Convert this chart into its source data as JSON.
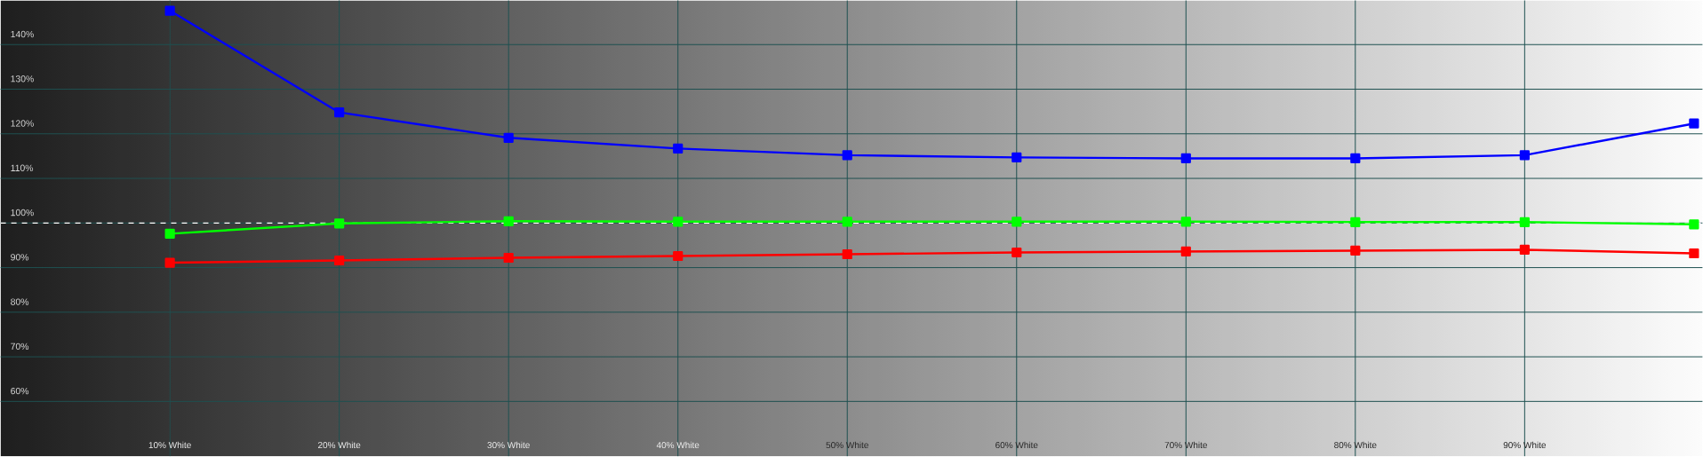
{
  "chart_data": {
    "type": "line",
    "x": [
      10,
      20,
      30,
      40,
      50,
      60,
      70,
      80,
      90,
      100
    ],
    "series": [
      {
        "color": "#0000ff",
        "values": [
          147.6,
          124.8,
          119.1,
          116.7,
          115.2,
          114.7,
          114.5,
          114.5,
          115.2,
          122.3
        ]
      },
      {
        "color": "#00ff00",
        "values": [
          97.6,
          99.9,
          100.4,
          100.3,
          100.3,
          100.3,
          100.3,
          100.2,
          100.2,
          99.7
        ]
      },
      {
        "color": "#ff0000",
        "values": [
          91.1,
          91.6,
          92.2,
          92.6,
          93.0,
          93.4,
          93.6,
          93.8,
          94.0,
          93.2
        ]
      }
    ],
    "xlim": [
      0,
      100.5
    ],
    "ylim": [
      47.7,
      149.9
    ],
    "xticks": [
      {
        "value": 10,
        "label": "10% White"
      },
      {
        "value": 20,
        "label": "20% White"
      },
      {
        "value": 30,
        "label": "30% White"
      },
      {
        "value": 40,
        "label": "40% White"
      },
      {
        "value": 50,
        "label": "50% White"
      },
      {
        "value": 60,
        "label": "60% White"
      },
      {
        "value": 70,
        "label": "70% White"
      },
      {
        "value": 80,
        "label": "80% White"
      },
      {
        "value": 90,
        "label": "90% White"
      }
    ],
    "yticks": [
      {
        "value": 60,
        "label": "60%"
      },
      {
        "value": 70,
        "label": "70%"
      },
      {
        "value": 80,
        "label": "80%"
      },
      {
        "value": 90,
        "label": "90%"
      },
      {
        "value": 100,
        "label": "100%"
      },
      {
        "value": 110,
        "label": "110%"
      },
      {
        "value": 120,
        "label": "120%"
      },
      {
        "value": 130,
        "label": "130%"
      },
      {
        "value": 140,
        "label": "140%"
      }
    ],
    "ref_lines": [
      {
        "axis": "y",
        "value": 100,
        "color": "#ffffff",
        "line_style": "dashed"
      }
    ],
    "grid": true,
    "marker": "square",
    "line_style": "solid"
  }
}
